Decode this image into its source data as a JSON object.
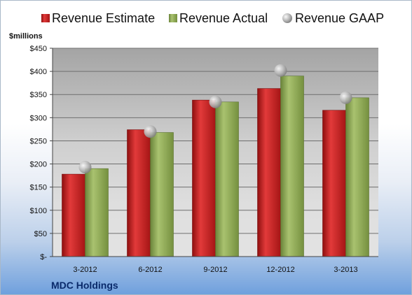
{
  "legend": {
    "estimate_label": "Revenue Estimate",
    "actual_label": "Revenue Actual",
    "gaap_label": "Revenue GAAP"
  },
  "colors": {
    "estimate": "#c41e1e",
    "actual": "#8ca557",
    "gaap": "#b8b8b8"
  },
  "chart_data": {
    "type": "bar",
    "unit_label": "$millions",
    "company": "MDC Holdings",
    "categories": [
      "3-2012",
      "6-2012",
      "9-2012",
      "12-2012",
      "3-2013"
    ],
    "y_ticks": [
      "$-",
      "$50",
      "$100",
      "$150",
      "$200",
      "$250",
      "$300",
      "$350",
      "$400",
      "$450"
    ],
    "ylim": [
      0,
      450
    ],
    "grid": true,
    "legend_position": "top",
    "series": [
      {
        "name": "Revenue Estimate",
        "kind": "bar",
        "values": [
          178,
          274,
          338,
          363,
          316
        ]
      },
      {
        "name": "Revenue Actual",
        "kind": "bar",
        "values": [
          190,
          268,
          334,
          390,
          343
        ]
      },
      {
        "name": "Revenue GAAP",
        "kind": "marker",
        "values": [
          193,
          270,
          334,
          402,
          343
        ]
      }
    ]
  }
}
